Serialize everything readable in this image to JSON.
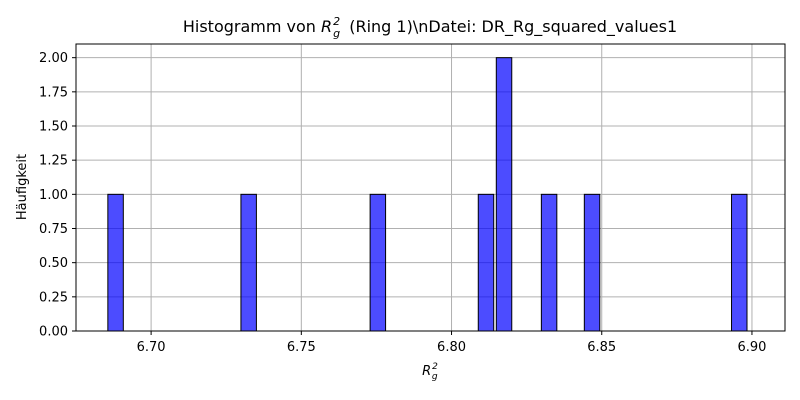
{
  "chart_data": {
    "type": "bar",
    "title_prefix": "Histogramm von",
    "title_symbol": "R",
    "title_sub": "g",
    "title_sup": "2",
    "title_suffix": "(Ring 1)\\nDatei: DR_Rg_squared_values1",
    "xlabel_symbol": "R",
    "xlabel_sub": "g",
    "xlabel_sup": "2",
    "ylabel": "Häufigkeit",
    "xlim": [
      6.675,
      6.911
    ],
    "ylim": [
      0,
      2.1
    ],
    "bin_width": 0.00515,
    "xticks": [
      "6.70",
      "6.75",
      "6.80",
      "6.85",
      "6.90"
    ],
    "xtick_values": [
      6.7,
      6.75,
      6.8,
      6.85,
      6.9
    ],
    "yticks": [
      "0.00",
      "0.25",
      "0.50",
      "0.75",
      "1.00",
      "1.25",
      "1.50",
      "1.75",
      "2.00"
    ],
    "ytick_values": [
      0,
      0.25,
      0.5,
      0.75,
      1.0,
      1.25,
      1.5,
      1.75,
      2.0
    ],
    "bars": [
      {
        "x0": 6.6856,
        "count": 1
      },
      {
        "x0": 6.7299,
        "count": 1
      },
      {
        "x0": 6.7729,
        "count": 1
      },
      {
        "x0": 6.8089,
        "count": 1
      },
      {
        "x0": 6.8149,
        "count": 2
      },
      {
        "x0": 6.8299,
        "count": 1
      },
      {
        "x0": 6.8442,
        "count": 1
      },
      {
        "x0": 6.8932,
        "count": 1
      }
    ],
    "bar_color": "#0000ff",
    "bar_edge_color": "#000000",
    "grid": true
  }
}
